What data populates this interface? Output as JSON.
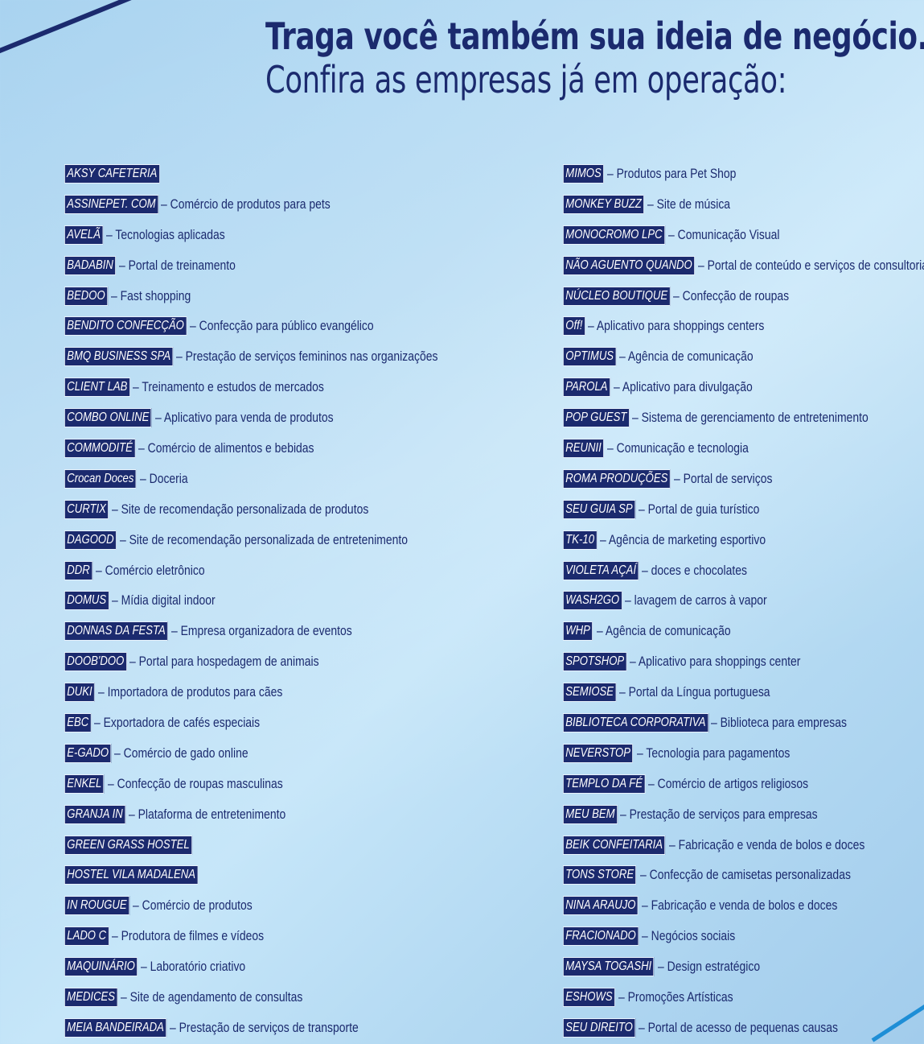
{
  "header": {
    "title_line1": "Traga você também sua ideia de negócio.",
    "title_line2": "Confira as empresas já em operação:"
  },
  "left_column": [
    {
      "name": "AKSY CAFETERIA",
      "desc": ""
    },
    {
      "name": "ASSINEPET. COM",
      "desc": "– Comércio de produtos para pets"
    },
    {
      "name": "AVELÃ",
      "desc": "– Tecnologias aplicadas"
    },
    {
      "name": "BADABIN",
      "desc": "– Portal de treinamento"
    },
    {
      "name": "BEDOO",
      "desc": "– Fast shopping"
    },
    {
      "name": "BENDITO CONFECÇÃO",
      "desc": "– Confecção para público evangélico"
    },
    {
      "name": "BMQ BUSINESS SPA",
      "desc": "– Prestação de serviços femininos nas organizações"
    },
    {
      "name": "CLIENT LAB",
      "desc": "– Treinamento e estudos de mercados"
    },
    {
      "name": "COMBO ONLINE",
      "desc": "– Aplicativo para venda de produtos"
    },
    {
      "name": "COMMODITÉ",
      "desc": "– Comércio de alimentos e bebidas"
    },
    {
      "name": "Crocan Doces",
      "desc": "– Doceria"
    },
    {
      "name": "CURTIX",
      "desc": "– Site de recomendação personalizada de produtos"
    },
    {
      "name": "DAGOOD",
      "desc": "– Site de recomendação personalizada de entretenimento"
    },
    {
      "name": "DDR",
      "desc": "– Comércio eletrônico"
    },
    {
      "name": "DOMUS",
      "desc": "– Mídia digital indoor"
    },
    {
      "name": "DONNAS DA FESTA",
      "desc": "– Empresa organizadora de eventos"
    },
    {
      "name": "DOOB'DOO",
      "desc": "– Portal para hospedagem de animais"
    },
    {
      "name": "DUKI",
      "desc": "– Importadora de produtos para cães"
    },
    {
      "name": "EBC",
      "desc": "– Exportadora de cafés especiais"
    },
    {
      "name": "E-GADO",
      "desc": "– Comércio de gado online"
    },
    {
      "name": "ENKEL",
      "desc": "– Confecção de roupas masculinas"
    },
    {
      "name": "GRANJA IN",
      "desc": "– Plataforma de entretenimento"
    },
    {
      "name": "GREEN GRASS HOSTEL",
      "desc": ""
    },
    {
      "name": "HOSTEL VILA MADALENA",
      "desc": ""
    },
    {
      "name": "IN ROUGUE",
      "desc": "– Comércio de produtos"
    },
    {
      "name": "LADO C",
      "desc": "– Produtora de filmes e vídeos"
    },
    {
      "name": "MAQUINÁRIO",
      "desc": "– Laboratório criativo"
    },
    {
      "name": "MEDICES",
      "desc": "– Site de agendamento de consultas"
    },
    {
      "name": "MEIA BANDEIRADA",
      "desc": "– Prestação de serviços de transporte"
    }
  ],
  "right_column": [
    {
      "name": "MIMOS",
      "desc": "– Produtos para Pet Shop"
    },
    {
      "name": "MONKEY BUZZ",
      "desc": "– Site de música"
    },
    {
      "name": "MONOCROMO LPC",
      "desc": "– Comunicação Visual"
    },
    {
      "name": "NÃO AGUENTO QUANDO",
      "desc": "– Portal de conteúdo e serviços de consultoria"
    },
    {
      "name": "NÚCLEO BOUTIQUE",
      "desc": "– Confecção de roupas"
    },
    {
      "name": "Off!",
      "desc": "– Aplicativo para shoppings centers"
    },
    {
      "name": "OPTIMUS",
      "desc": "– Agência de comunicação"
    },
    {
      "name": "PAROLA",
      "desc": "– Aplicativo para divulgação"
    },
    {
      "name": "POP GUEST",
      "desc": "– Sistema de gerenciamento de entretenimento"
    },
    {
      "name": "REUNII",
      "desc": "– Comunicação e tecnologia"
    },
    {
      "name": "ROMA PRODUÇÕES",
      "desc": "– Portal de serviços"
    },
    {
      "name": "SEU GUIA SP",
      "desc": "– Portal de guia turístico"
    },
    {
      "name": "TK-10",
      "desc": "– Agência de marketing esportivo"
    },
    {
      "name": "VIOLETA AÇAÍ",
      "desc": "– doces e chocolates"
    },
    {
      "name": "WASH2GO",
      "desc": "– lavagem de carros à vapor"
    },
    {
      "name": "WHP",
      "desc": "– Agência de comunicação"
    },
    {
      "name": "SPOTSHOP",
      "desc": "– Aplicativo para shoppings center"
    },
    {
      "name": "SEMIOSE",
      "desc": "– Portal da Língua portuguesa"
    },
    {
      "name": "BIBLIOTECA CORPORATIVA",
      "desc": "– Biblioteca para empresas"
    },
    {
      "name": "NEVERSTOP",
      "desc": "– Tecnologia para pagamentos"
    },
    {
      "name": "TEMPLO DA FÉ",
      "desc": "– Comércio de artigos religiosos"
    },
    {
      "name": "MEU BEM",
      "desc": "– Prestação de serviços para empresas"
    },
    {
      "name": "BEIK CONFEITARIA",
      "desc": "– Fabricação e venda de bolos e doces"
    },
    {
      "name": "TONS STORE",
      "desc": "– Confecção de camisetas personalizadas"
    },
    {
      "name": "NINA ARAUJO",
      "desc": "– Fabricação e venda de bolos e doces"
    },
    {
      "name": "FRACIONADO",
      "desc": "– Negócios sociais"
    },
    {
      "name": "MAYSA TOGASHI",
      "desc": "– Design estratégico"
    },
    {
      "name": "ESHOWS",
      "desc": "– Promoções Artísticas"
    },
    {
      "name": "SEU DIREITO",
      "desc": "– Portal de acesso de pequenas causas"
    }
  ],
  "colors": {
    "navy": "#1b2a6e",
    "background_light": "#c6e6f9",
    "background_mid": "#a9d3f0",
    "accent_blue": "#1e8ed6"
  }
}
